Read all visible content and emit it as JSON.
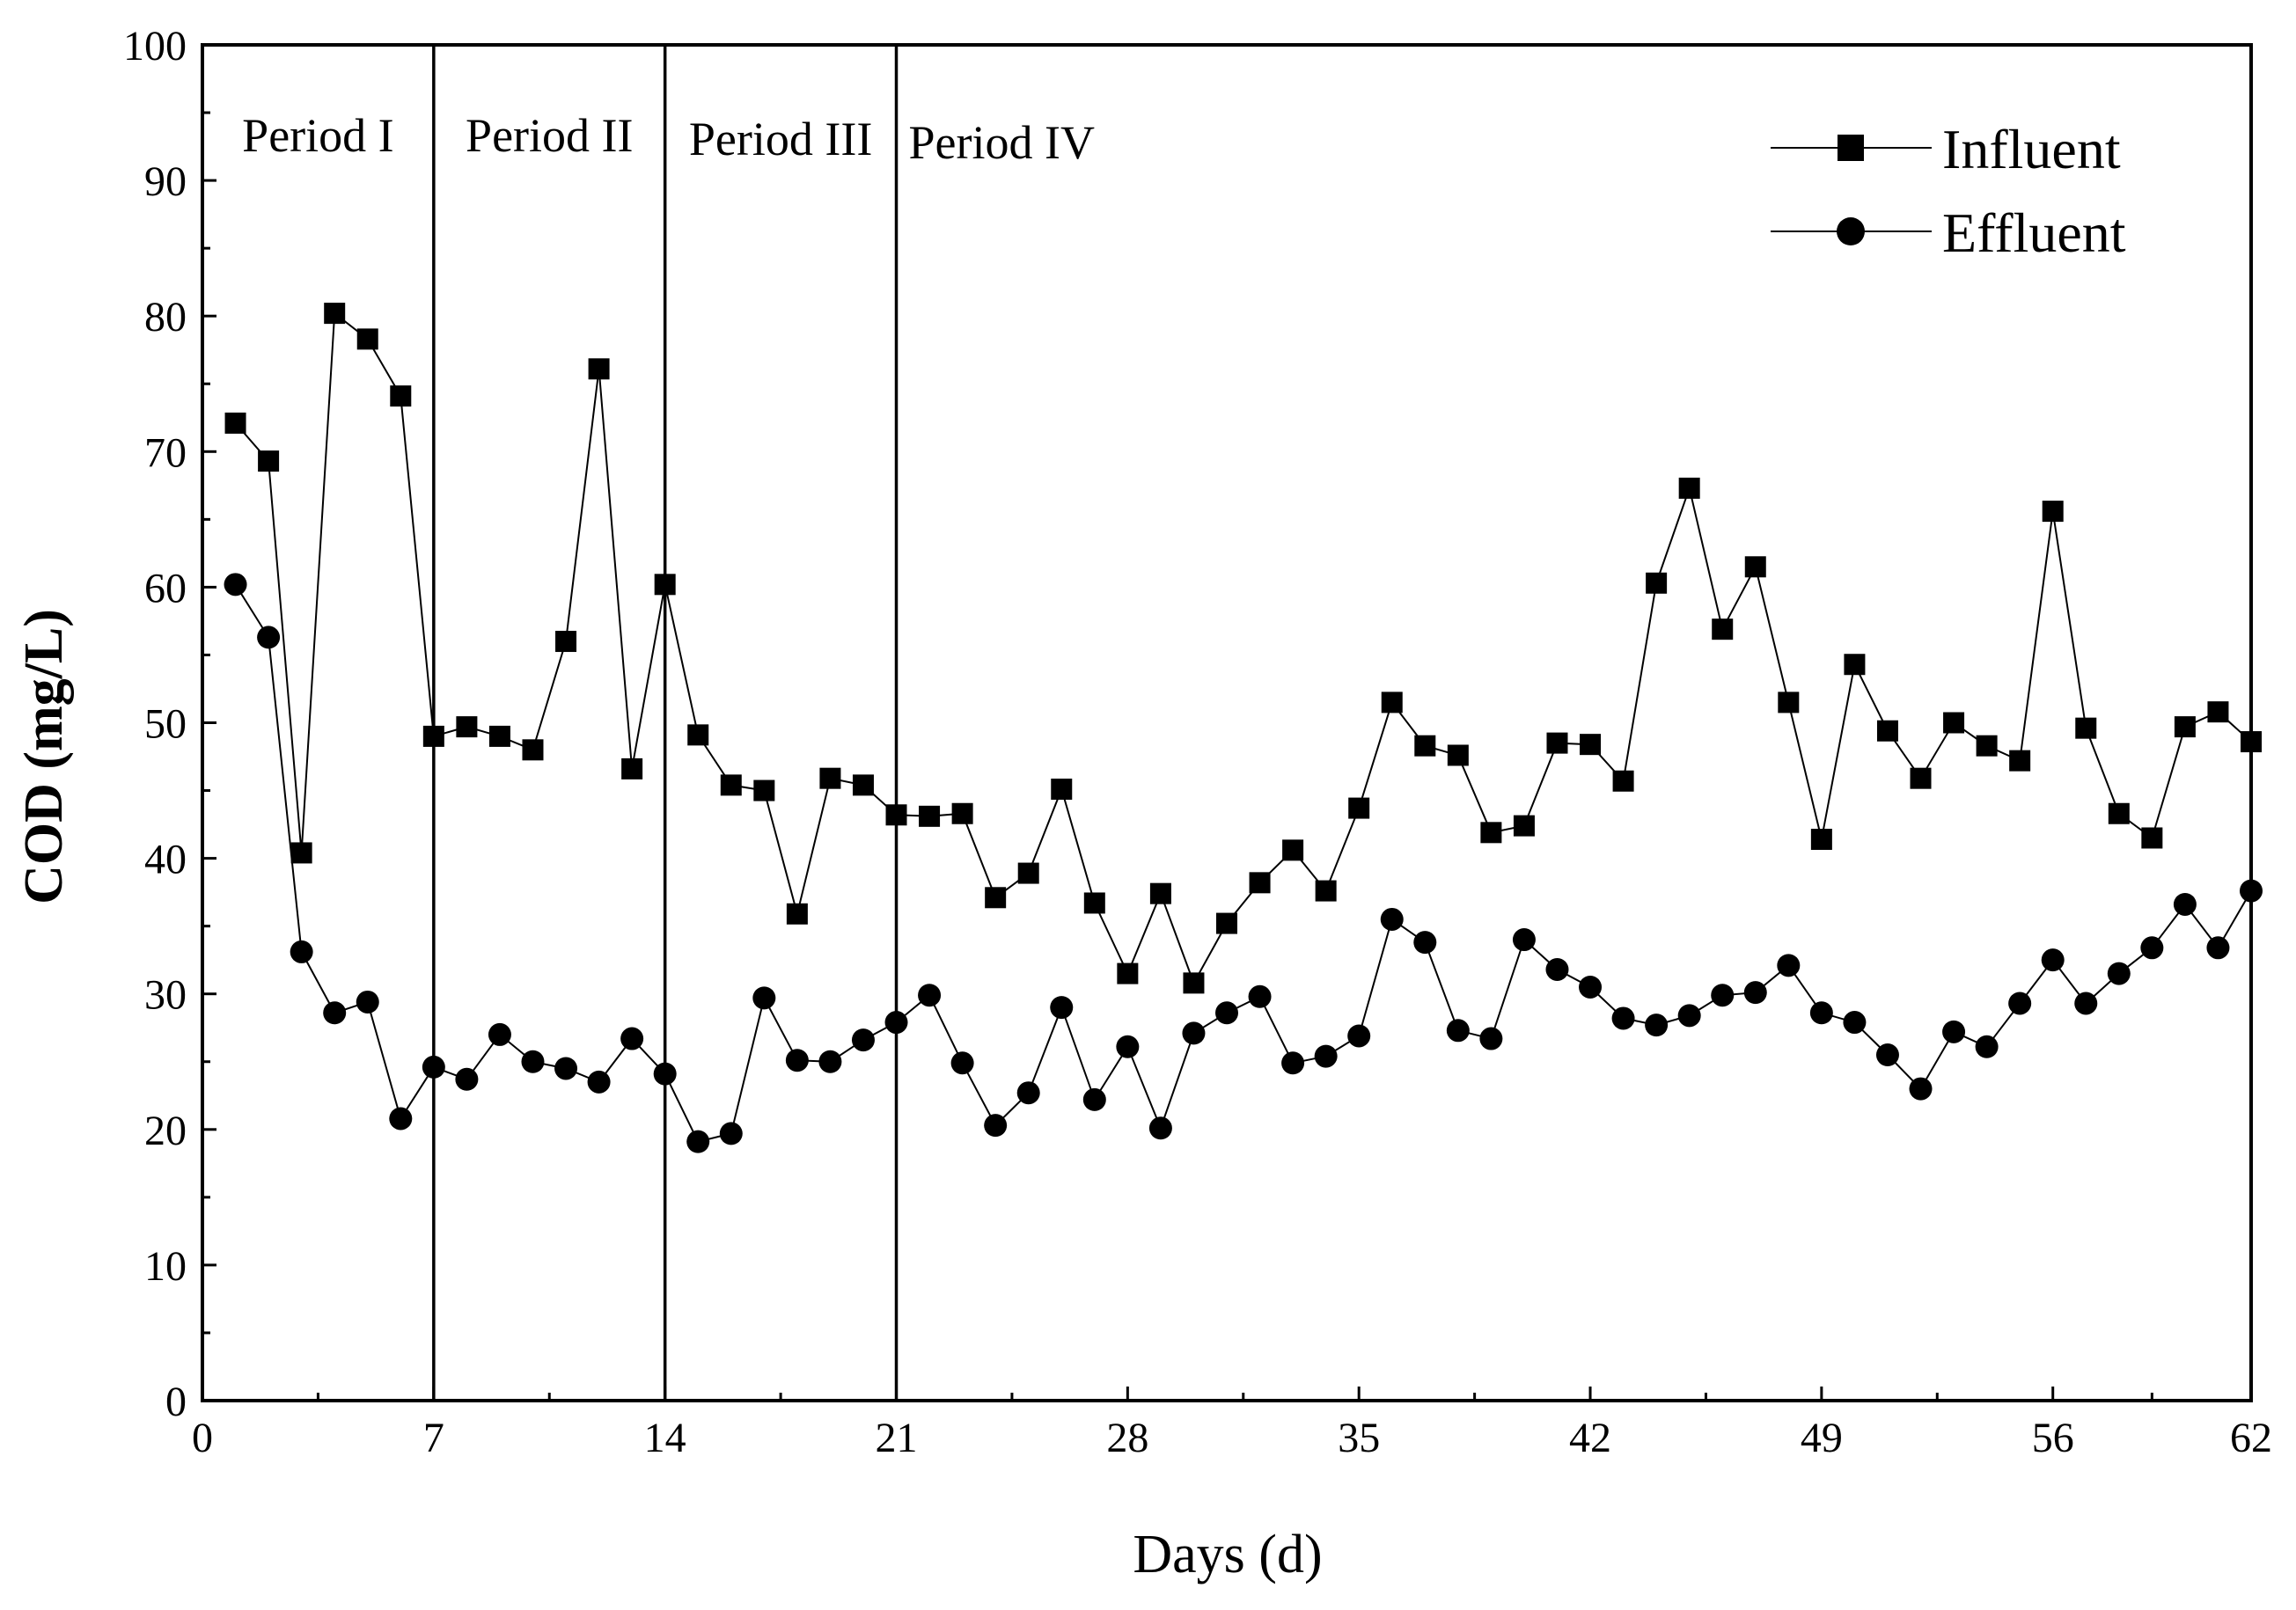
{
  "chart_data": {
    "type": "line",
    "title": "",
    "xlabel": "Days (d)",
    "ylabel": "COD (mg/L)",
    "xlim": [
      0,
      62
    ],
    "ylim": [
      0,
      100
    ],
    "xticks": [
      0,
      7,
      14,
      21,
      28,
      35,
      42,
      49,
      56,
      62
    ],
    "yticks": [
      0,
      10,
      20,
      30,
      40,
      50,
      60,
      70,
      80,
      90,
      100
    ],
    "grid": false,
    "legend_position": "top-right",
    "period_boundaries": [
      7,
      14,
      21
    ],
    "periods": [
      "Period I",
      "Period II",
      "Period III",
      "Period IV"
    ],
    "x": [
      1,
      2,
      3,
      4,
      5,
      6,
      7,
      8,
      9,
      10,
      11,
      12,
      13,
      14,
      15,
      16,
      17,
      18,
      19,
      20,
      21,
      22,
      23,
      24,
      25,
      26,
      27,
      28,
      29,
      30,
      31,
      32,
      33,
      34,
      35,
      36,
      37,
      38,
      39,
      40,
      41,
      42,
      43,
      44,
      45,
      46,
      47,
      48,
      49,
      50,
      51,
      52,
      53,
      54,
      55,
      56,
      57,
      58,
      59,
      60,
      61,
      62
    ],
    "series": [
      {
        "name": "Influent",
        "marker": "square",
        "values": [
          72.1,
          69.3,
          40.4,
          80.2,
          78.3,
          74.1,
          49.0,
          49.7,
          49.0,
          48.0,
          56.0,
          76.1,
          46.6,
          60.2,
          49.1,
          45.4,
          45.0,
          35.9,
          45.9,
          45.4,
          43.2,
          43.1,
          43.3,
          37.1,
          38.9,
          45.1,
          36.7,
          31.5,
          37.4,
          30.8,
          35.2,
          38.2,
          40.6,
          37.6,
          43.7,
          51.5,
          48.3,
          47.6,
          41.9,
          42.4,
          48.5,
          48.4,
          45.7,
          60.3,
          67.3,
          56.9,
          61.5,
          51.5,
          41.4,
          54.3,
          49.4,
          45.9,
          50.0,
          48.3,
          47.2,
          65.6,
          49.6,
          43.3,
          41.5,
          49.7,
          50.8,
          48.6
        ]
      },
      {
        "name": "Effluent",
        "marker": "circle",
        "values": [
          60.2,
          56.3,
          33.1,
          28.6,
          29.4,
          20.8,
          24.6,
          23.7,
          27.0,
          25.0,
          24.5,
          23.5,
          26.7,
          24.1,
          19.1,
          19.7,
          29.7,
          25.1,
          25.0,
          26.6,
          27.9,
          29.9,
          24.9,
          20.3,
          22.7,
          29.0,
          22.2,
          26.1,
          20.1,
          27.1,
          28.6,
          29.8,
          24.9,
          25.4,
          26.9,
          35.5,
          33.8,
          27.3,
          26.7,
          34.0,
          31.8,
          30.5,
          28.2,
          27.7,
          28.4,
          29.9,
          30.1,
          32.1,
          28.6,
          27.9,
          25.5,
          23.0,
          27.2,
          26.1,
          29.3,
          32.5,
          29.3,
          31.5,
          33.4,
          36.6,
          33.4,
          37.6
        ]
      }
    ]
  }
}
